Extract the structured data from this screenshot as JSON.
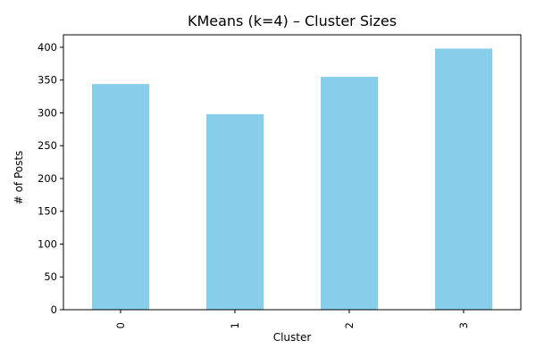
{
  "chart_data": {
    "type": "bar",
    "title": "KMeans (k=4) – Cluster Sizes",
    "xlabel": "Cluster",
    "ylabel": "# of Posts",
    "categories": [
      "0",
      "1",
      "2",
      "3"
    ],
    "values": [
      344,
      298,
      355,
      398
    ],
    "ylim": [
      0,
      419
    ],
    "yticks": [
      0,
      50,
      100,
      150,
      200,
      250,
      300,
      350,
      400
    ],
    "bar_color": "#87CEEB",
    "grid": false,
    "legend": "none"
  }
}
